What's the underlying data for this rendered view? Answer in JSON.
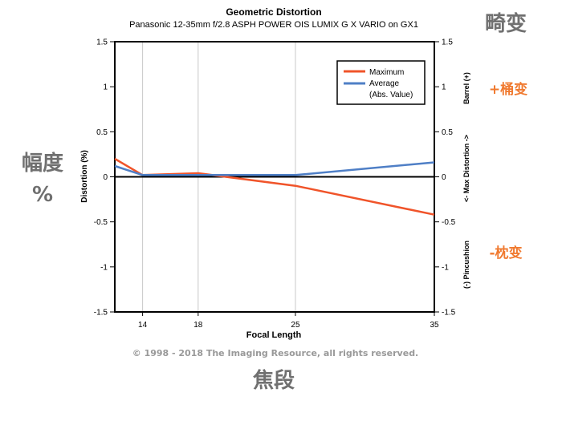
{
  "chart_data": {
    "type": "line",
    "title": "Geometric Distortion",
    "subtitle": "Panasonic 12-35mm f/2.8 ASPH POWER OIS LUMIX G X VARIO on GX1",
    "xlabel": "Focal Length",
    "ylabel": "Distortion (%)",
    "right_axis_labels": [
      "(-) Pincushion",
      "<- Max Distortion ->",
      "Barrel (+)"
    ],
    "x_ticks": [
      "14",
      "18",
      "25",
      "35"
    ],
    "x_range": [
      12,
      35
    ],
    "y_ticks": [
      "1.5",
      "1",
      "0.5",
      "0",
      "-0.5",
      "-1",
      "-1.5"
    ],
    "ylim": [
      -1.5,
      1.5
    ],
    "grid_x": true,
    "legend_position": "top-right",
    "series": [
      {
        "name": "Maximum",
        "color": "#f0542a",
        "x": [
          12,
          14,
          18,
          25,
          35
        ],
        "values": [
          0.2,
          0.02,
          0.04,
          -0.1,
          -0.42
        ]
      },
      {
        "name": "Average",
        "sublabel": "(Abs. Value)",
        "color": "#4f7fc6",
        "x": [
          12,
          14,
          18,
          25,
          35
        ],
        "values": [
          0.12,
          0.02,
          0.02,
          0.02,
          0.16
        ]
      }
    ]
  },
  "copyright": "© 1998 - 2018 The Imaging Resource, all rights reserved.",
  "overlay": {
    "distortion_cn": "畸变",
    "barrel_cn": "+桶变",
    "pincushion_cn": "-枕变",
    "amplitude_cn_1": "幅度",
    "amplitude_cn_2": "%",
    "focal_cn": "焦段"
  },
  "colors": {
    "overlay_text": "#707070",
    "overlay_accent": "#f07a30",
    "copyright": "#999999"
  }
}
